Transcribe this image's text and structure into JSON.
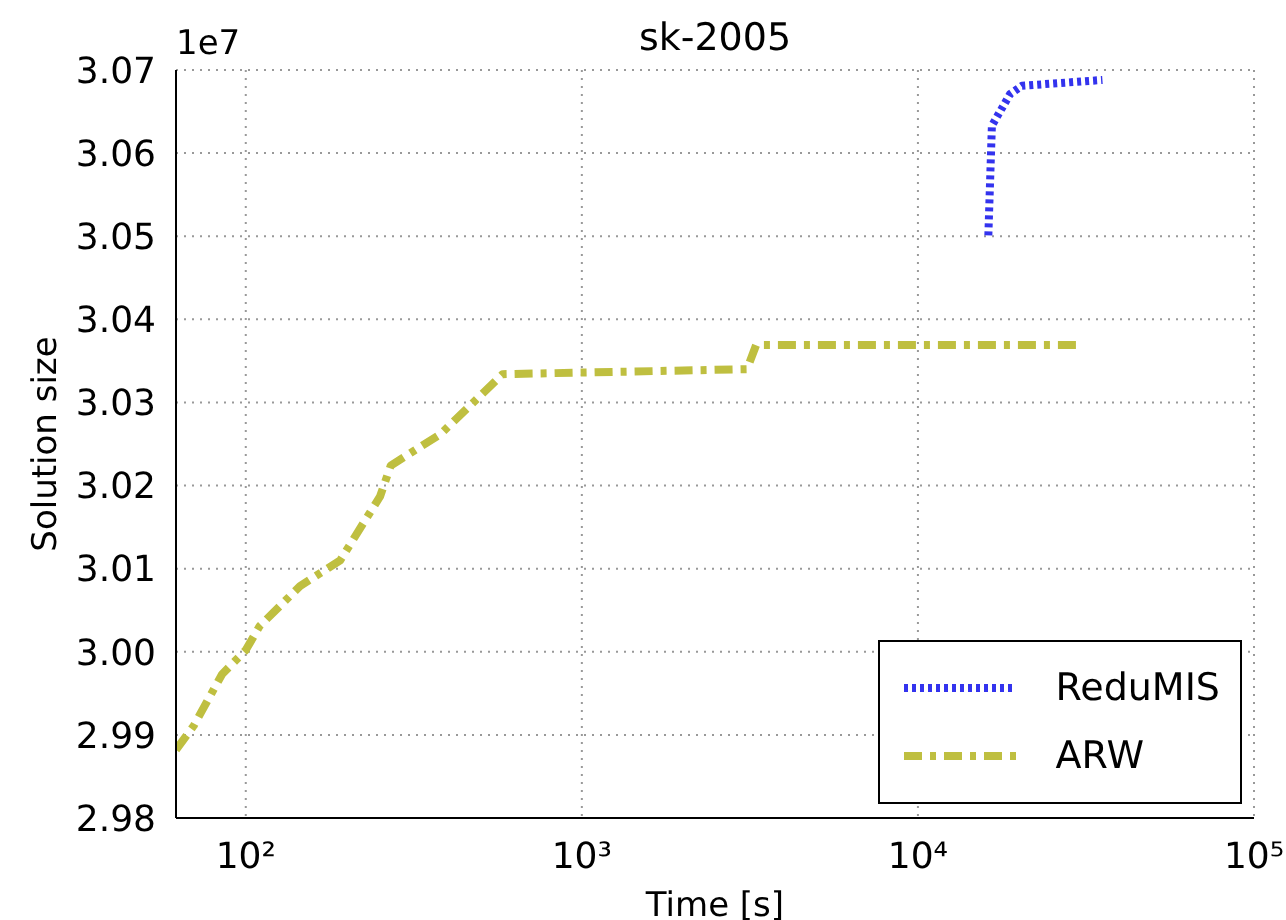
{
  "chart_data": {
    "type": "line",
    "title": "sk-2005",
    "xlabel": "Time [s]",
    "ylabel": "Solution size",
    "annotations": [
      "1e7"
    ],
    "log": "x",
    "xlim": [
      62,
      100000
    ],
    "xticks": [
      {
        "value": 100,
        "label": "10²"
      },
      {
        "value": 1000,
        "label": "10³"
      },
      {
        "value": 10000,
        "label": "10⁴"
      },
      {
        "value": 100000,
        "label": "10⁵"
      }
    ],
    "ylim": [
      2.98,
      3.07
    ],
    "yticks": [
      {
        "value": 2.98,
        "label": "2.98"
      },
      {
        "value": 2.99,
        "label": "2.99"
      },
      {
        "value": 3.0,
        "label": "3.00"
      },
      {
        "value": 3.01,
        "label": "3.01"
      },
      {
        "value": 3.02,
        "label": "3.02"
      },
      {
        "value": 3.03,
        "label": "3.03"
      },
      {
        "value": 3.04,
        "label": "3.04"
      },
      {
        "value": 3.05,
        "label": "3.05"
      },
      {
        "value": 3.06,
        "label": "3.06"
      },
      {
        "value": 3.07,
        "label": "3.07"
      }
    ],
    "grid": true,
    "legend": "bottom right",
    "marker": "none",
    "series": [
      {
        "name": "ReduMIS",
        "color": "#3333ee",
        "line_style": "dotted",
        "x": [
          16200,
          16600,
          18800,
          20400,
          35400
        ],
        "values": [
          3.0501,
          3.0633,
          3.0671,
          3.0681,
          3.0688
        ]
      },
      {
        "name": "ARW",
        "color": "#bfbf40",
        "line_style": "dashed",
        "x": [
          62,
          70,
          85,
          100,
          110,
          145,
          191,
          251,
          270,
          380,
          581,
          3100,
          3300,
          29600
        ],
        "values": [
          2.9882,
          2.9911,
          2.9973,
          3.0002,
          3.0031,
          3.0079,
          3.011,
          3.0187,
          3.0224,
          3.0262,
          3.0334,
          3.034,
          3.0369,
          3.0369
        ]
      }
    ]
  }
}
